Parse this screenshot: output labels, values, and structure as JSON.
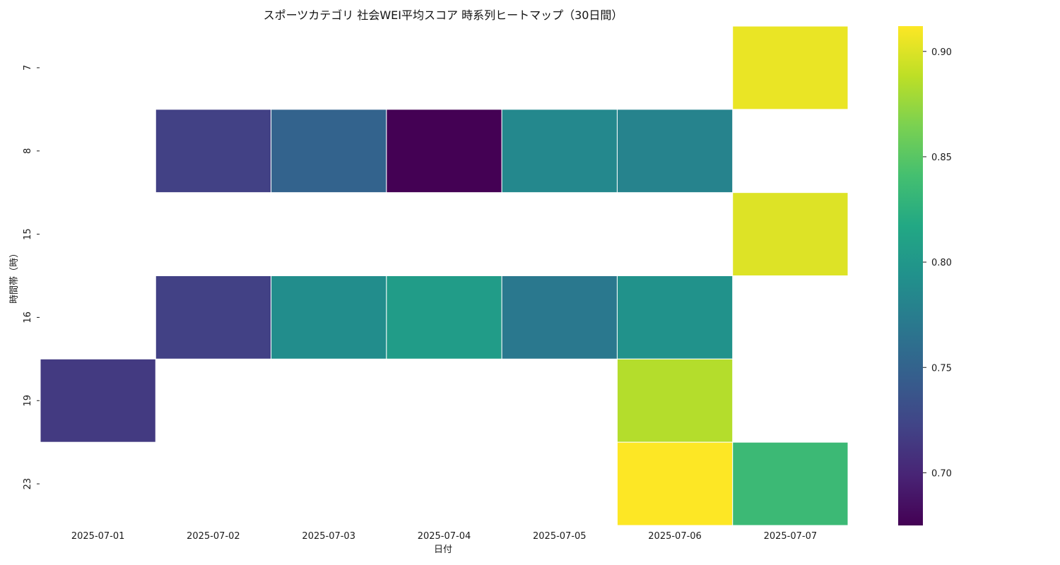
{
  "chart_data": {
    "type": "heatmap",
    "title": "スポーツカテゴリ 社会WEI平均スコア 時系列ヒートマップ（30日間）",
    "xlabel": "日付",
    "ylabel": "時間帯（時）",
    "x": [
      "2025-07-01",
      "2025-07-02",
      "2025-07-03",
      "2025-07-04",
      "2025-07-05",
      "2025-07-06",
      "2025-07-07"
    ],
    "y": [
      "7",
      "8",
      "15",
      "16",
      "19",
      "23"
    ],
    "values": [
      [
        null,
        null,
        null,
        null,
        null,
        null,
        0.905
      ],
      [
        null,
        0.72,
        0.75,
        0.675,
        0.785,
        0.78,
        null
      ],
      [
        null,
        null,
        null,
        null,
        null,
        null,
        0.9
      ],
      [
        null,
        0.72,
        0.79,
        0.805,
        0.77,
        0.795,
        null
      ],
      [
        0.715,
        null,
        null,
        null,
        null,
        0.885,
        null
      ],
      [
        null,
        null,
        null,
        null,
        null,
        0.912,
        0.835
      ]
    ],
    "colorscale": "viridis",
    "vmin": 0.675,
    "vmax": 0.912,
    "colorbar_ticks": [
      "0.70",
      "0.75",
      "0.80",
      "0.85",
      "0.90"
    ],
    "colorbar_tick_values": [
      0.7,
      0.75,
      0.8,
      0.85,
      0.9
    ],
    "missing_color": "#ffffff",
    "grid": false,
    "legend": "colorbar-right"
  }
}
